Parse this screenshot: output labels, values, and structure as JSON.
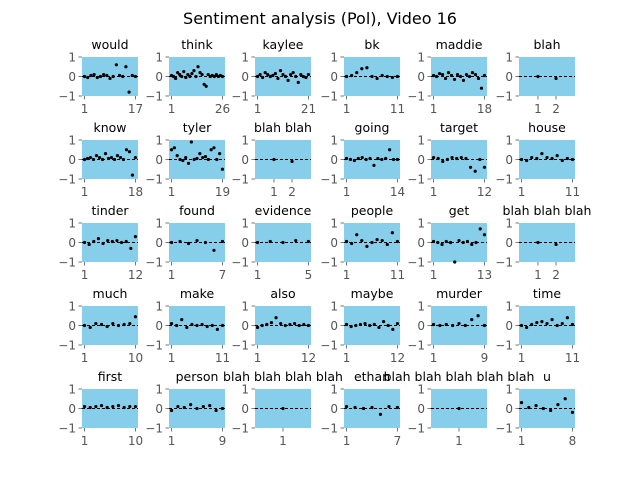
{
  "chart_data": {
    "type": "scatter",
    "title": "Sentiment analysis (Pol), Video 16",
    "ylim": [
      -1,
      1
    ],
    "yticks": [
      "1",
      "0",
      "−1"
    ],
    "grid": false,
    "zero_line": "dashed",
    "colors": {
      "panel": "#87ceeb",
      "points": "#000000",
      "zero_line": "#000000",
      "text": "#000000",
      "ticks": "#555555"
    },
    "subplots": [
      {
        "title": "would",
        "xlim": [
          0.2,
          17.8
        ],
        "xticks": [
          1,
          17
        ],
        "values": [
          0.0,
          -0.05,
          0.05,
          0.1,
          -0.05,
          0.0,
          0.1,
          0.05,
          -0.1,
          0.0,
          0.6,
          0.05,
          0.0,
          0.5,
          -0.8,
          0.05,
          0.0
        ]
      },
      {
        "title": "think",
        "xlim": [
          -0.25,
          27.25
        ],
        "xticks": [
          1,
          26
        ],
        "values": [
          0.05,
          0.0,
          -0.1,
          0.2,
          0.1,
          0.0,
          0.25,
          -0.05,
          0.1,
          0.0,
          0.15,
          0.3,
          0.0,
          0.5,
          0.2,
          0.1,
          -0.4,
          -0.5,
          0.1,
          0.0,
          0.05,
          0.0,
          0.1,
          0.0,
          0.05,
          0.0
        ]
      },
      {
        "title": "kaylee",
        "xlim": [
          0.0,
          22.0
        ],
        "xticks": [
          1,
          21
        ],
        "values": [
          0.0,
          0.1,
          -0.05,
          0.2,
          0.1,
          0.0,
          0.05,
          0.15,
          -0.1,
          0.3,
          0.1,
          0.0,
          -0.2,
          0.1,
          0.2,
          0.0,
          -0.3,
          0.1,
          0.0,
          -0.05,
          0.1
        ]
      },
      {
        "title": "bk",
        "xlim": [
          0.5,
          11.5
        ],
        "xticks": [
          1,
          11
        ],
        "values": [
          0.0,
          0.05,
          0.2,
          0.4,
          0.45,
          0.0,
          -0.1,
          0.05,
          0.0,
          -0.05,
          0.0
        ]
      },
      {
        "title": "maddie",
        "xlim": [
          0.15,
          18.85
        ],
        "xticks": [
          1,
          18
        ],
        "values": [
          0.05,
          0.0,
          0.15,
          0.1,
          -0.1,
          0.2,
          0.05,
          -0.15,
          0.1,
          0.0,
          -0.2,
          0.1,
          0.0,
          0.2,
          0.1,
          -0.1,
          -0.6,
          0.05
        ]
      },
      {
        "title": "blah",
        "xlim": [
          -0.05,
          3.05
        ],
        "xticks": [
          1,
          2
        ],
        "values": [
          0.0,
          -0.1
        ]
      },
      {
        "title": "know",
        "xlim": [
          0.15,
          18.85
        ],
        "xticks": [
          1,
          18
        ],
        "values": [
          0.0,
          0.05,
          0.1,
          0.0,
          0.2,
          0.1,
          0.0,
          0.3,
          0.05,
          0.1,
          0.0,
          0.2,
          0.1,
          0.0,
          0.5,
          0.4,
          -0.8,
          0.1
        ]
      },
      {
        "title": "tyler",
        "xlim": [
          0.1,
          19.9
        ],
        "xticks": [
          1,
          19
        ],
        "values": [
          0.5,
          0.6,
          0.2,
          0.0,
          -0.05,
          0.1,
          -0.2,
          0.9,
          0.0,
          0.05,
          0.3,
          0.1,
          0.15,
          0.0,
          0.5,
          0.6,
          0.0,
          0.3,
          -0.5
        ]
      },
      {
        "title": "blah blah",
        "xlim": [
          -0.05,
          3.05
        ],
        "xticks": [
          1,
          2
        ],
        "values": [
          0.0,
          -0.1
        ]
      },
      {
        "title": "going",
        "xlim": [
          0.35,
          14.65
        ],
        "xticks": [
          1,
          14
        ],
        "values": [
          0.05,
          0.0,
          -0.05,
          0.05,
          0.1,
          0.0,
          0.05,
          -0.3,
          0.05,
          0.0,
          0.05,
          0.5,
          0.0,
          0.0
        ]
      },
      {
        "title": "target",
        "xlim": [
          0.45,
          12.55
        ],
        "xticks": [
          1,
          12
        ],
        "values": [
          0.1,
          0.05,
          -0.1,
          0.0,
          0.1,
          0.05,
          0.1,
          0.05,
          -0.4,
          -0.6,
          0.0,
          -0.4
        ]
      },
      {
        "title": "house",
        "xlim": [
          0.5,
          11.5
        ],
        "xticks": [
          1,
          11
        ],
        "values": [
          0.0,
          -0.05,
          0.1,
          0.05,
          0.3,
          0.1,
          0.05,
          0.2,
          -0.05,
          0.05,
          0.0
        ]
      },
      {
        "title": "tinder",
        "xlim": [
          0.45,
          12.55
        ],
        "xticks": [
          1,
          12
        ],
        "values": [
          0.0,
          -0.1,
          0.05,
          0.2,
          -0.05,
          0.1,
          0.05,
          0.1,
          0.0,
          0.05,
          -0.3,
          0.3
        ]
      },
      {
        "title": "found",
        "xlim": [
          0.7,
          7.3
        ],
        "xticks": [
          1,
          7
        ],
        "values": [
          0.0,
          0.05,
          -0.05,
          0.1,
          0.0,
          -0.4,
          0.05
        ]
      },
      {
        "title": "evidence",
        "xlim": [
          0.8,
          5.2
        ],
        "xticks": [
          1,
          5
        ],
        "values": [
          0.0,
          0.05,
          0.0,
          0.1,
          0.05
        ]
      },
      {
        "title": "people",
        "xlim": [
          0.5,
          11.5
        ],
        "xticks": [
          1,
          11
        ],
        "values": [
          0.05,
          -0.05,
          0.4,
          0.1,
          -0.2,
          0.0,
          0.15,
          0.1,
          -0.1,
          0.5,
          0.05
        ]
      },
      {
        "title": "get",
        "xlim": [
          0.4,
          13.6
        ],
        "xticks": [
          1,
          13
        ],
        "values": [
          0.05,
          0.0,
          -0.1,
          0.05,
          0.0,
          -1.0,
          0.1,
          0.0,
          0.05,
          -0.1,
          0.0,
          0.7,
          0.4
        ]
      },
      {
        "title": "blah blah blah",
        "xlim": [
          -0.05,
          3.05
        ],
        "xticks": [
          1,
          2
        ],
        "values": [
          0.0,
          -0.1
        ]
      },
      {
        "title": "much",
        "xlim": [
          0.55,
          10.45
        ],
        "xticks": [
          1,
          10
        ],
        "values": [
          0.0,
          -0.1,
          0.1,
          0.05,
          -0.05,
          0.1,
          0.0,
          0.05,
          0.1,
          0.45
        ]
      },
      {
        "title": "make",
        "xlim": [
          0.5,
          11.5
        ],
        "xticks": [
          1,
          11
        ],
        "values": [
          0.1,
          0.0,
          0.3,
          -0.1,
          0.05,
          0.0,
          0.05,
          -0.05,
          0.0,
          -0.2,
          0.0
        ]
      },
      {
        "title": "also",
        "xlim": [
          0.45,
          12.55
        ],
        "xticks": [
          1,
          12
        ],
        "values": [
          -0.1,
          0.0,
          0.05,
          0.15,
          0.4,
          0.1,
          0.0,
          0.05,
          0.1,
          0.0,
          0.05,
          0.0
        ]
      },
      {
        "title": "maybe",
        "xlim": [
          0.45,
          12.55
        ],
        "xticks": [
          1,
          12
        ],
        "values": [
          0.05,
          -0.05,
          0.0,
          0.05,
          0.1,
          0.0,
          0.05,
          -0.1,
          0.2,
          0.0,
          -0.2,
          0.1
        ]
      },
      {
        "title": "murder",
        "xlim": [
          0.6,
          9.4
        ],
        "xticks": [
          1,
          9
        ],
        "values": [
          0.05,
          0.0,
          0.05,
          0.0,
          0.1,
          0.0,
          0.3,
          0.5,
          0.0
        ]
      },
      {
        "title": "time",
        "xlim": [
          0.5,
          11.5
        ],
        "xticks": [
          1,
          11
        ],
        "values": [
          0.0,
          -0.1,
          0.05,
          0.15,
          0.2,
          0.1,
          0.3,
          0.0,
          0.1,
          0.4,
          0.05
        ]
      },
      {
        "title": "first",
        "xlim": [
          0.55,
          10.45
        ],
        "xticks": [
          1,
          10
        ],
        "values": [
          0.1,
          0.05,
          0.1,
          0.15,
          0.05,
          0.1,
          0.15,
          0.05,
          0.1,
          0.1
        ]
      },
      {
        "title": "person",
        "xlim": [
          0.6,
          9.4
        ],
        "xticks": [
          1,
          9
        ],
        "values": [
          -0.1,
          0.1,
          0.05,
          0.2,
          0.0,
          0.1,
          0.15,
          -0.1,
          0.0
        ]
      },
      {
        "title": "blah blah blah blah",
        "xlim": [
          0.95,
          1.05
        ],
        "xticks": [
          1
        ],
        "values": [
          0.0
        ]
      },
      {
        "title": "ethan",
        "xlim": [
          0.7,
          7.3
        ],
        "xticks": [
          1,
          7
        ],
        "values": [
          0.1,
          0.05,
          0.0,
          0.05,
          -0.3,
          0.1,
          0.05
        ]
      },
      {
        "title": "blah blah blah blah blah",
        "xlim": [
          0.95,
          1.05
        ],
        "xticks": [
          1
        ],
        "values": [
          0.0
        ]
      },
      {
        "title": "u",
        "xlim": [
          0.65,
          8.35
        ],
        "xticks": [
          1,
          8
        ],
        "values": [
          0.3,
          0.05,
          0.15,
          0.0,
          -0.1,
          0.2,
          0.5,
          -0.2
        ]
      }
    ]
  }
}
